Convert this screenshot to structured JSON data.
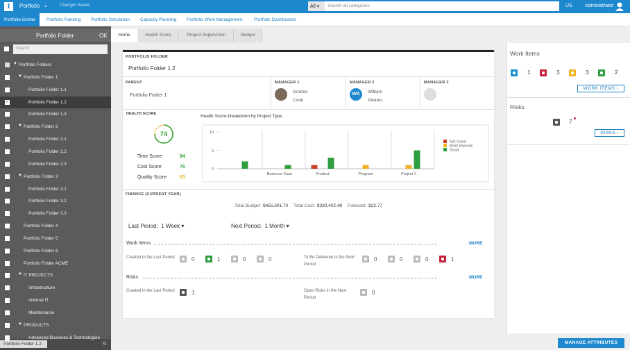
{
  "topbar": {
    "app": "Portfolio",
    "status": "Changes Saved",
    "search_scope": "All",
    "search_placeholder": "Search all categories",
    "locale": "US",
    "user": "Administrator"
  },
  "nav": [
    "Portfolio Center",
    "Portfolio Ranking",
    "Portfolio Simulation",
    "Capacity Planning",
    "Portfolio Work Management",
    "Portfolio Dashboards"
  ],
  "sidebar": {
    "title": "Portfolio Folder",
    "ok": "OK",
    "search_placeholder": "Search",
    "footer": "Portfolio Folder 1.2",
    "tree": [
      {
        "label": "Portfolio Folders",
        "children": [
          {
            "label": "Portfolio Folder 1",
            "children": [
              {
                "label": "Portfolio Folder 1.1"
              },
              {
                "label": "Portfolio Folder 1.2",
                "selected": true
              },
              {
                "label": "Portfolio Folder 1.3"
              }
            ]
          },
          {
            "label": "Portfolio Folder 2",
            "children": [
              {
                "label": "Portfolio Folder 2.1"
              },
              {
                "label": "Portfolio Folder 2.2"
              },
              {
                "label": "Portfolio Folder 2.3"
              }
            ]
          },
          {
            "label": "Portfolio Folder 3",
            "children": [
              {
                "label": "Portfolio Folder 3.1"
              },
              {
                "label": "Portfolio Folder 3.2"
              },
              {
                "label": "Portfolio Folder 3.3"
              }
            ]
          },
          {
            "label": "Portfolio Folder 4"
          },
          {
            "label": "Portfolio Folder 5"
          },
          {
            "label": "Portfolio Folder 6"
          },
          {
            "label": "Portfolio Folder ACME"
          },
          {
            "label": "IT PROJECTS",
            "children": [
              {
                "label": "Infrastructure"
              },
              {
                "label": "Internal IT"
              },
              {
                "label": "Maintenance"
              }
            ]
          },
          {
            "label": "PRODUCTS",
            "children": [
              {
                "label": "Advanced Business & Technologies"
              }
            ]
          }
        ]
      }
    ]
  },
  "tabs": [
    "Home",
    "Health Score",
    "Project Supervision",
    "Budget"
  ],
  "card": {
    "section": "PORTFOLIO FOLDER",
    "name": "Portfolio Folder 1.2",
    "parent": {
      "label": "PARENT",
      "value": "Portfolio Folder 1"
    },
    "managers": [
      {
        "label": "MANAGER 1",
        "name": "Gordon Cook"
      },
      {
        "label": "MANAGER 2",
        "initials": "WA",
        "name": "William Alvarez"
      },
      {
        "label": "MANAGER 3"
      }
    ],
    "health": {
      "label": "HEALTH SCORE",
      "overall": 74,
      "scores": [
        {
          "name": "Time Score",
          "value": 84,
          "color": "#3aa53a"
        },
        {
          "name": "Cost Score",
          "value": 76,
          "color": "#3aa53a"
        },
        {
          "name": "Quality Score",
          "value": 63,
          "color": "#e8b320"
        }
      ]
    },
    "finance": {
      "label": "FINANCE (CURRENT YEAR)",
      "items": [
        {
          "label": "Total Budget:",
          "value": "$455,301.70"
        },
        {
          "label": "Total Cost:",
          "value": "$330,402.48"
        },
        {
          "label": "Forecast:",
          "value": "$22.77"
        }
      ]
    },
    "periods": {
      "last": {
        "label": "Last Period:",
        "value": "1 Week"
      },
      "next": {
        "label": "Next Period:",
        "value": "1 Month"
      }
    },
    "work_items": {
      "title": "Work Items",
      "more": "MORE",
      "last": {
        "label": "Created in the Last Period",
        "counts": [
          0,
          1,
          0,
          0
        ],
        "colors": [
          "#bbb",
          "#2e9e3e",
          "#bbb",
          "#bbb"
        ]
      },
      "next": {
        "label": "To Be Delivered in the Next Period",
        "counts": [
          0,
          0,
          0,
          1
        ],
        "colors": [
          "#bbb",
          "#bbb",
          "#bbb",
          "#c8203c"
        ]
      }
    },
    "risks": {
      "title": "Risks",
      "more": "MORE",
      "last": {
        "label": "Created in the Last Period",
        "count": 1,
        "color": "#555"
      },
      "next": {
        "label": "Open Risks in the Next Period",
        "count": 0,
        "color": "#bbb"
      }
    }
  },
  "chart_data": {
    "type": "bar",
    "title": "Health Score breakdown by Project Type",
    "categories": [
      null,
      "Business Case",
      "Product",
      "Program",
      "Project 1"
    ],
    "series": [
      {
        "name": "Not Good",
        "color": "#c8402c",
        "values": [
          0,
          0,
          1,
          0,
          0
        ]
      },
      {
        "name": "Must Improve",
        "color": "#f0b323",
        "values": [
          0,
          0,
          0,
          1,
          1
        ]
      },
      {
        "name": "Good",
        "color": "#2e9e3e",
        "values": [
          2,
          1,
          3,
          0,
          5
        ]
      }
    ],
    "ylim": [
      0,
      10
    ],
    "yticks": [
      0,
      5,
      10
    ],
    "legend": "right"
  },
  "right": {
    "work_items": {
      "title": "Work Items",
      "counts": [
        1,
        3,
        3,
        2
      ],
      "colors": [
        "#1a8fd1",
        "#c8203c",
        "#f0b323",
        "#2e9e3e"
      ],
      "button": "WORK ITEMS ›"
    },
    "risks": {
      "title": "Risks",
      "count": 7,
      "button": "RISKS ›"
    }
  },
  "footer": {
    "button": "MANAGE ATTRIBUTES"
  }
}
